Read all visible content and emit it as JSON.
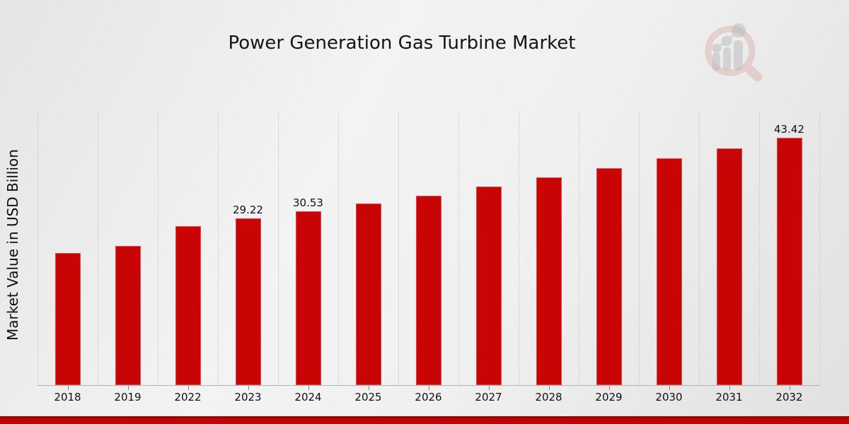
{
  "title": "Power Generation Gas Turbine Market",
  "y_axis_label": "Market Value in USD Billion",
  "logo": {
    "name": "market-research-future-watermark-logo"
  },
  "colors": {
    "bar": "#c90404",
    "bottom_strip": "#c40404",
    "background": "#efefef",
    "gridline": "#c5c5c5",
    "axis": "#b3b3b3"
  },
  "chart_data": {
    "type": "bar",
    "title": "Power Generation Gas Turbine Market",
    "xlabel": "",
    "ylabel": "Market Value in USD Billion",
    "categories": [
      "2018",
      "2019",
      "2022",
      "2023",
      "2024",
      "2025",
      "2026",
      "2027",
      "2028",
      "2029",
      "2030",
      "2031",
      "2032"
    ],
    "values": [
      23.2,
      24.4,
      27.9,
      29.22,
      30.53,
      31.9,
      33.3,
      34.9,
      36.5,
      38.1,
      39.8,
      41.6,
      43.42
    ],
    "bar_labels": [
      null,
      null,
      null,
      "29.22",
      "30.53",
      null,
      null,
      null,
      null,
      null,
      null,
      null,
      "43.42"
    ],
    "ylim": [
      0,
      48
    ],
    "grid": "vertical-dotted",
    "legend": "none",
    "bar_color": "#c90404"
  }
}
